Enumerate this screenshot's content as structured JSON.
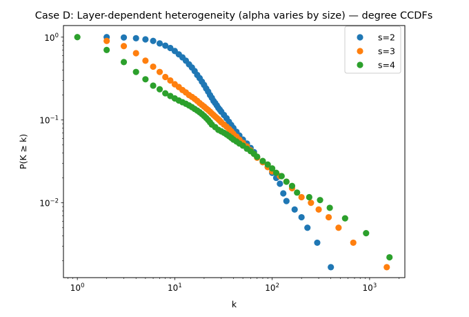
{
  "chart_data": {
    "type": "scatter",
    "title": "Case D: Layer-dependent heterogeneity (alpha varies by size) — degree CCDFs",
    "xlabel": "k",
    "ylabel": "P(K ≥ k)",
    "xscale": "log",
    "yscale": "log",
    "xlim": [
      0.72,
      2300
    ],
    "ylim": [
      0.00125,
      1.38
    ],
    "xticks": [
      {
        "value": 1,
        "base": "10",
        "exp": "0"
      },
      {
        "value": 10,
        "base": "10",
        "exp": "1"
      },
      {
        "value": 100,
        "base": "10",
        "exp": "2"
      },
      {
        "value": 1000,
        "base": "10",
        "exp": "3"
      }
    ],
    "yticks": [
      {
        "value": 0.01,
        "base": "10",
        "exp": "−2"
      },
      {
        "value": 0.1,
        "base": "10",
        "exp": "−1"
      },
      {
        "value": 1,
        "base": "10",
        "exp": "0"
      }
    ],
    "legend_position": "top-right",
    "grid": false,
    "series": [
      {
        "name": "s=2",
        "color": "#1f77b4",
        "points": [
          [
            2,
            1.0
          ],
          [
            3,
            0.99
          ],
          [
            4,
            0.97
          ],
          [
            5,
            0.94
          ],
          [
            6,
            0.9
          ],
          [
            7,
            0.84
          ],
          [
            8,
            0.79
          ],
          [
            9,
            0.74
          ],
          [
            10,
            0.68
          ],
          [
            11,
            0.62
          ],
          [
            12,
            0.57
          ],
          [
            13,
            0.52
          ],
          [
            14,
            0.47
          ],
          [
            15,
            0.43
          ],
          [
            16,
            0.39
          ],
          [
            17,
            0.35
          ],
          [
            18,
            0.32
          ],
          [
            19,
            0.29
          ],
          [
            20,
            0.265
          ],
          [
            21,
            0.24
          ],
          [
            22,
            0.22
          ],
          [
            23,
            0.2
          ],
          [
            24,
            0.185
          ],
          [
            25,
            0.17
          ],
          [
            26,
            0.16
          ],
          [
            27,
            0.15
          ],
          [
            28,
            0.14
          ],
          [
            29,
            0.133
          ],
          [
            30,
            0.126
          ],
          [
            32,
            0.115
          ],
          [
            34,
            0.105
          ],
          [
            36,
            0.095
          ],
          [
            38,
            0.087
          ],
          [
            40,
            0.08
          ],
          [
            43,
            0.072
          ],
          [
            46,
            0.065
          ],
          [
            50,
            0.058
          ],
          [
            55,
            0.052
          ],
          [
            60,
            0.046
          ],
          [
            65,
            0.041
          ],
          [
            70,
            0.036
          ],
          [
            80,
            0.031
          ],
          [
            90,
            0.027
          ],
          [
            100,
            0.023
          ],
          [
            110,
            0.02
          ],
          [
            120,
            0.017
          ],
          [
            130,
            0.013
          ],
          [
            140,
            0.0105
          ],
          [
            170,
            0.0083
          ],
          [
            200,
            0.0067
          ],
          [
            230,
            0.005
          ],
          [
            290,
            0.0033
          ],
          [
            400,
            0.00167
          ]
        ]
      },
      {
        "name": "s=3",
        "color": "#ff7f0e",
        "points": [
          [
            2,
            0.9
          ],
          [
            3,
            0.78
          ],
          [
            4,
            0.64
          ],
          [
            5,
            0.52
          ],
          [
            6,
            0.44
          ],
          [
            7,
            0.38
          ],
          [
            8,
            0.33
          ],
          [
            9,
            0.3
          ],
          [
            10,
            0.27
          ],
          [
            11,
            0.25
          ],
          [
            12,
            0.23
          ],
          [
            13,
            0.215
          ],
          [
            14,
            0.2
          ],
          [
            15,
            0.19
          ],
          [
            16,
            0.18
          ],
          [
            17,
            0.17
          ],
          [
            18,
            0.16
          ],
          [
            19,
            0.152
          ],
          [
            20,
            0.145
          ],
          [
            21,
            0.138
          ],
          [
            22,
            0.132
          ],
          [
            23,
            0.126
          ],
          [
            24,
            0.12
          ],
          [
            25,
            0.115
          ],
          [
            26,
            0.11
          ],
          [
            27,
            0.106
          ],
          [
            28,
            0.102
          ],
          [
            29,
            0.098
          ],
          [
            30,
            0.094
          ],
          [
            32,
            0.088
          ],
          [
            34,
            0.083
          ],
          [
            36,
            0.078
          ],
          [
            38,
            0.073
          ],
          [
            40,
            0.068
          ],
          [
            43,
            0.063
          ],
          [
            46,
            0.058
          ],
          [
            50,
            0.053
          ],
          [
            55,
            0.048
          ],
          [
            60,
            0.043
          ],
          [
            65,
            0.039
          ],
          [
            70,
            0.035
          ],
          [
            80,
            0.031
          ],
          [
            90,
            0.027
          ],
          [
            100,
            0.024
          ],
          [
            120,
            0.021
          ],
          [
            140,
            0.018
          ],
          [
            160,
            0.015
          ],
          [
            200,
            0.0117
          ],
          [
            250,
            0.01
          ],
          [
            300,
            0.0083
          ],
          [
            380,
            0.0067
          ],
          [
            480,
            0.005
          ],
          [
            680,
            0.0033
          ],
          [
            1500,
            0.00167
          ]
        ]
      },
      {
        "name": "s=4",
        "color": "#2ca02c",
        "points": [
          [
            1,
            1.0
          ],
          [
            2,
            0.7
          ],
          [
            3,
            0.5
          ],
          [
            4,
            0.38
          ],
          [
            5,
            0.31
          ],
          [
            6,
            0.26
          ],
          [
            7,
            0.235
          ],
          [
            8,
            0.21
          ],
          [
            9,
            0.195
          ],
          [
            10,
            0.182
          ],
          [
            11,
            0.172
          ],
          [
            12,
            0.164
          ],
          [
            13,
            0.157
          ],
          [
            14,
            0.15
          ],
          [
            15,
            0.143
          ],
          [
            16,
            0.136
          ],
          [
            17,
            0.13
          ],
          [
            18,
            0.124
          ],
          [
            19,
            0.118
          ],
          [
            20,
            0.112
          ],
          [
            21,
            0.106
          ],
          [
            22,
            0.1
          ],
          [
            23,
            0.094
          ],
          [
            24,
            0.088
          ],
          [
            26,
            0.082
          ],
          [
            28,
            0.076
          ],
          [
            30,
            0.073
          ],
          [
            32,
            0.07
          ],
          [
            34,
            0.067
          ],
          [
            36,
            0.064
          ],
          [
            38,
            0.061
          ],
          [
            40,
            0.058
          ],
          [
            43,
            0.055
          ],
          [
            46,
            0.052
          ],
          [
            50,
            0.049
          ],
          [
            55,
            0.045
          ],
          [
            60,
            0.042
          ],
          [
            65,
            0.039
          ],
          [
            70,
            0.036
          ],
          [
            80,
            0.032
          ],
          [
            90,
            0.029
          ],
          [
            100,
            0.026
          ],
          [
            110,
            0.023
          ],
          [
            125,
            0.021
          ],
          [
            140,
            0.018
          ],
          [
            160,
            0.016
          ],
          [
            180,
            0.0133
          ],
          [
            240,
            0.0117
          ],
          [
            310,
            0.0108
          ],
          [
            390,
            0.0087
          ],
          [
            560,
            0.0065
          ],
          [
            920,
            0.0043
          ],
          [
            1600,
            0.0022
          ]
        ]
      }
    ]
  }
}
